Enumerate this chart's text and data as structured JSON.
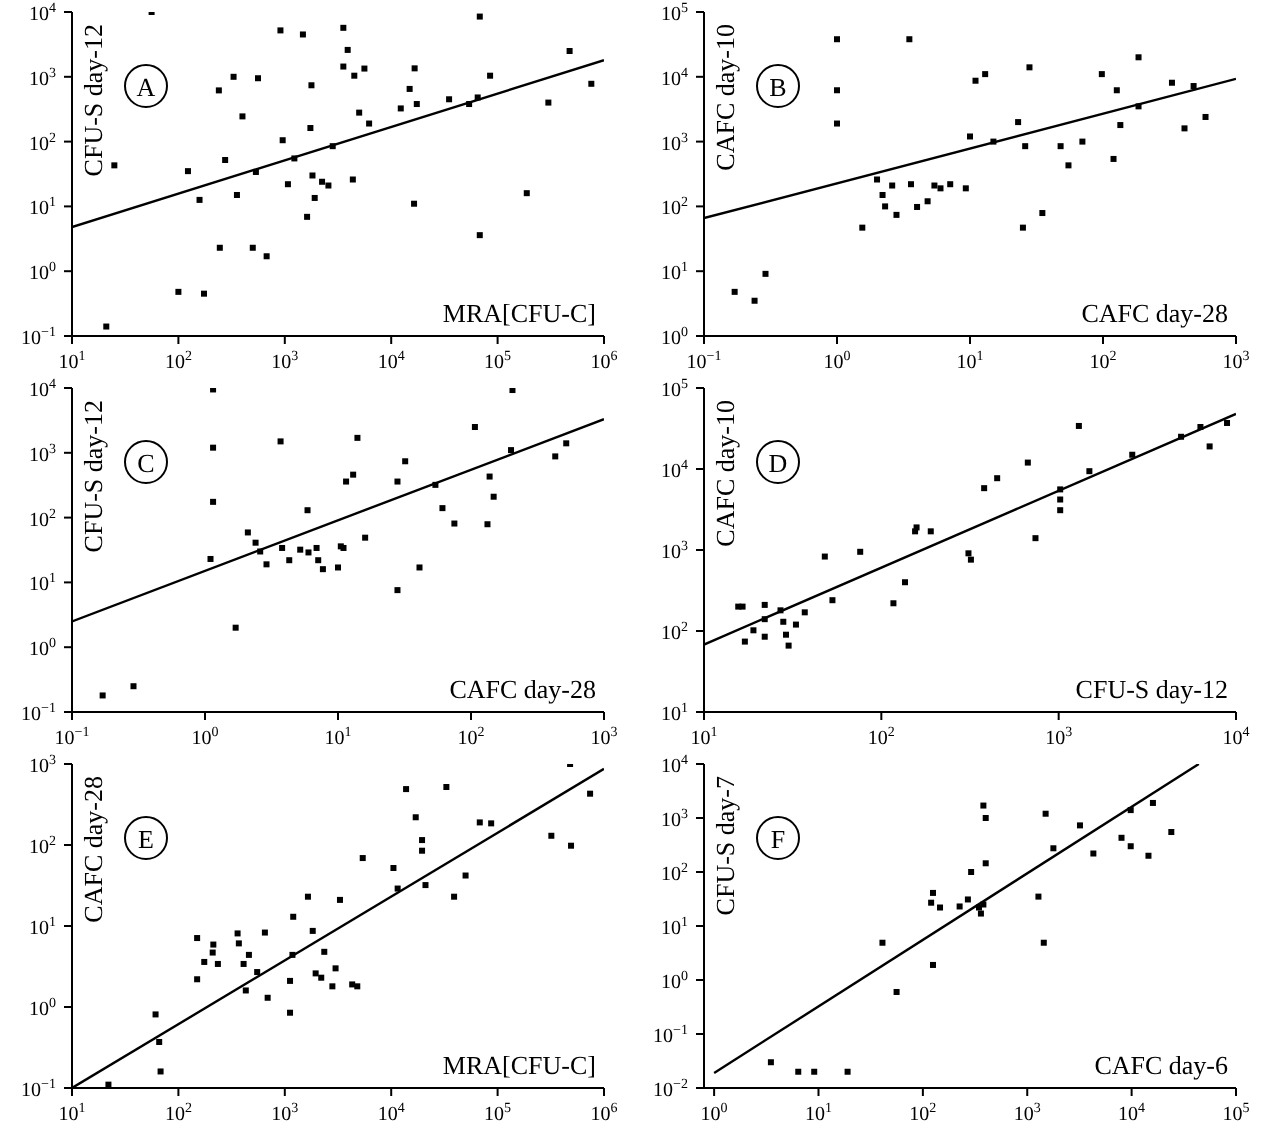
{
  "chart_data": [
    {
      "type": "scatter",
      "xlabel": "MRA[CFU-C]",
      "ylabel": "CFU-S day-12",
      "annotations": [
        "A"
      ],
      "log": "xy",
      "grid": false,
      "legend": false,
      "marker": "square",
      "xlim": [
        10,
        1000000
      ],
      "ylim": [
        0.1,
        10000
      ],
      "xticks": [
        {
          "value": 10,
          "label": "10$^{1}$"
        },
        {
          "value": 100,
          "label": "10$^{2}$"
        },
        {
          "value": 1000,
          "label": "10$^{3}$"
        },
        {
          "value": 10000,
          "label": "10$^{4}$"
        },
        {
          "value": 100000,
          "label": "10$^{5}$"
        },
        {
          "value": 1000000,
          "label": "10$^{6}$"
        }
      ],
      "yticks": [
        {
          "value": 0.1,
          "label": "10$^{−1}$"
        },
        {
          "value": 1,
          "label": "10$^{0}$"
        },
        {
          "value": 10,
          "label": "10$^{1}$"
        },
        {
          "value": 100,
          "label": "10$^{2}$"
        },
        {
          "value": 1000,
          "label": "10$^{3}$"
        },
        {
          "value": 10000,
          "label": "10$^{4}$"
        }
      ],
      "series": [
        {
          "color": "#000000",
          "x": [
            21,
            56,
            25,
            100,
            174,
            123,
            158,
            240,
            330,
            245,
            355,
            275,
            400,
            560,
            500,
            675,
            535,
            910,
            955,
            1070,
            1230,
            1480,
            1620,
            1740,
            1780,
            1820,
            1910,
            2240,
            2570,
            2820,
            3550,
            3550,
            3900,
            4360,
            4500,
            5000,
            5600,
            6200,
            16400,
            12300,
            14900,
            17400,
            16600,
            35000,
            54000,
            65000,
            68000,
            68000,
            85000,
            188000,
            300000,
            475000,
            760000
          ],
          "values": [
            0.14,
            10000,
            43,
            0.48,
            0.45,
            35,
            12.6,
            617,
            1000,
            2.3,
            15,
            52,
            245,
            950,
            2.3,
            1.7,
            34,
            5200,
            105,
            22,
            55,
            4500,
            6.9,
            162,
            740,
            30,
            13.5,
            24,
            21,
            85,
            5700,
            1440,
            2600,
            26,
            1040,
            280,
            1340,
            190,
            11,
            325,
            650,
            380,
            1350,
            450,
            380,
            480,
            3.6,
            8500,
            1040,
            16,
            400,
            2500,
            780
          ]
        },
        {
          "type": "line",
          "color": "#000000",
          "marker": "none",
          "x": [
            10,
            1000000
          ],
          "values": [
            4.8,
            1800
          ]
        }
      ]
    },
    {
      "type": "scatter",
      "xlabel": "CAFC day-28",
      "ylabel": "CAFC day-10",
      "annotations": [
        "B"
      ],
      "log": "xy",
      "grid": false,
      "legend": false,
      "marker": "square",
      "xlim": [
        0.1,
        1000
      ],
      "ylim": [
        1,
        100000
      ],
      "xticks": [
        {
          "value": 0.1,
          "label": "10$^{−1}$"
        },
        {
          "value": 1,
          "label": "10$^{0}$"
        },
        {
          "value": 10,
          "label": "10$^{1}$"
        },
        {
          "value": 100,
          "label": "10$^{2}$"
        },
        {
          "value": 1000,
          "label": "10$^{3}$"
        }
      ],
      "yticks": [
        {
          "value": 1,
          "label": "10$^{0}$"
        },
        {
          "value": 10,
          "label": "10$^{1}$"
        },
        {
          "value": 100,
          "label": "10$^{2}$"
        },
        {
          "value": 1000,
          "label": "10$^{3}$"
        },
        {
          "value": 10000,
          "label": "10$^{4}$"
        },
        {
          "value": 100000,
          "label": "10$^{5}$"
        }
      ],
      "series": [
        {
          "color": "#000000",
          "x": [
            0.17,
            0.24,
            0.29,
            1.0,
            1.0,
            1.0,
            1.55,
            3.5,
            2.0,
            2.2,
            2.3,
            2.6,
            2.8,
            3.6,
            4.0,
            4.8,
            5.4,
            6.0,
            7.1,
            9.3,
            10,
            11,
            13,
            15,
            23,
            25,
            26,
            28,
            35,
            48,
            55,
            70,
            98,
            120,
            127,
            135,
            185,
            185,
            330,
            410,
            480,
            590
          ],
          "values": [
            4.8,
            3.5,
            9.1,
            38000,
            6200,
            1900,
            47,
            38000,
            260,
            150,
            100,
            210,
            74,
            220,
            98,
            120,
            210,
            190,
            220,
            190,
            1200,
            8700,
            11000,
            1000,
            2000,
            47,
            850,
            14000,
            79,
            850,
            430,
            1000,
            11000,
            540,
            6200,
            1800,
            20000,
            3500,
            8100,
            1600,
            7200,
            2400
          ]
        },
        {
          "type": "line",
          "color": "#000000",
          "marker": "none",
          "x": [
            0.1,
            1000
          ],
          "values": [
            66,
            9300
          ]
        }
      ]
    },
    {
      "type": "scatter",
      "xlabel": "CAFC day-28",
      "ylabel": "CFU-S day-12",
      "annotations": [
        "C"
      ],
      "log": "xy",
      "grid": false,
      "legend": false,
      "marker": "square",
      "xlim": [
        0.1,
        1000
      ],
      "ylim": [
        0.1,
        10000
      ],
      "xticks": [
        {
          "value": 0.1,
          "label": "10$^{−1}$"
        },
        {
          "value": 1,
          "label": "10$^{0}$"
        },
        {
          "value": 10,
          "label": "10$^{1}$"
        },
        {
          "value": 100,
          "label": "10$^{2}$"
        },
        {
          "value": 1000,
          "label": "10$^{3}$"
        }
      ],
      "yticks": [
        {
          "value": 0.1,
          "label": "10$^{−1}$"
        },
        {
          "value": 1,
          "label": "10$^{0}$"
        },
        {
          "value": 10,
          "label": "10$^{1}$"
        },
        {
          "value": 100,
          "label": "10$^{2}$"
        },
        {
          "value": 1000,
          "label": "10$^{3}$"
        },
        {
          "value": 10000,
          "label": "10$^{4}$"
        }
      ],
      "series": [
        {
          "color": "#000000",
          "x": [
            0.17,
            0.29,
            1.15,
            1.15,
            1.15,
            1.1,
            1.7,
            2.1,
            2.4,
            2.6,
            2.9,
            3.7,
            3.8,
            4.3,
            5.2,
            5.9,
            6.0,
            6.9,
            7.1,
            7.7,
            10,
            10.5,
            11,
            11.5,
            13,
            14,
            16,
            28,
            28,
            32,
            41,
            54,
            61,
            75,
            107,
            133,
            138,
            148,
            200,
            205,
            430,
            520
          ],
          "values": [
            0.18,
            0.25,
            9500,
            1200,
            175,
            23,
            2.0,
            59,
            41,
            30,
            19,
            1500,
            34,
            22,
            32,
            130,
            29,
            34,
            22,
            16,
            17,
            36,
            34,
            360,
            460,
            1700,
            49,
            7.6,
            360,
            740,
            17,
            320,
            140,
            81,
            2500,
            79,
            430,
            210,
            1100,
            9300,
            880,
            1400
          ]
        },
        {
          "type": "line",
          "color": "#000000",
          "marker": "none",
          "x": [
            0.1,
            1000
          ],
          "values": [
            2.5,
            3300
          ]
        }
      ]
    },
    {
      "type": "scatter",
      "xlabel": "CFU-S day-12",
      "ylabel": "CAFC day-10",
      "annotations": [
        "D"
      ],
      "log": "xy",
      "grid": false,
      "legend": false,
      "marker": "square",
      "xlim": [
        10,
        10000
      ],
      "ylim": [
        10,
        100000
      ],
      "xticks": [
        {
          "value": 10,
          "label": "10$^{1}$"
        },
        {
          "value": 100,
          "label": "10$^{2}$"
        },
        {
          "value": 1000,
          "label": "10$^{3}$"
        },
        {
          "value": 10000,
          "label": "10$^{4}$"
        }
      ],
      "yticks": [
        {
          "value": 10,
          "label": "10$^{1}$"
        },
        {
          "value": 100,
          "label": "10$^{2}$"
        },
        {
          "value": 1000,
          "label": "10$^{3}$"
        },
        {
          "value": 10000,
          "label": "10$^{4}$"
        },
        {
          "value": 100000,
          "label": "10$^{5}$"
        }
      ],
      "series": [
        {
          "color": "#000000",
          "x": [
            15.6,
            16.5,
            17,
            19,
            22,
            22,
            22,
            27,
            28,
            29,
            30,
            33,
            37,
            53,
            48,
            76,
            117,
            136,
            155,
            158,
            190,
            310,
            320,
            380,
            450,
            670,
            740,
            1020,
            1020,
            1020,
            1300,
            1490,
            2600,
            4900,
            6300,
            7100,
            8900
          ],
          "values": [
            200,
            200,
            74,
            102,
            210,
            140,
            85,
            180,
            130,
            90,
            66,
            120,
            170,
            240,
            830,
            950,
            220,
            400,
            1700,
            1900,
            1700,
            910,
            760,
            5800,
            7700,
            12000,
            1400,
            5600,
            4200,
            3100,
            34000,
            9400,
            15000,
            25000,
            33000,
            19000,
            37000
          ]
        },
        {
          "type": "line",
          "color": "#000000",
          "marker": "none",
          "x": [
            10,
            10000
          ],
          "values": [
            68,
            48000
          ]
        }
      ]
    },
    {
      "type": "scatter",
      "xlabel": "MRA[CFU-C]",
      "ylabel": "CAFC day-28",
      "annotations": [
        "E"
      ],
      "log": "xy",
      "grid": false,
      "legend": false,
      "marker": "square",
      "xlim": [
        10,
        1000000
      ],
      "ylim": [
        0.1,
        1000
      ],
      "xticks": [
        {
          "value": 10,
          "label": "10$^{1}$"
        },
        {
          "value": 100,
          "label": "10$^{2}$"
        },
        {
          "value": 1000,
          "label": "10$^{3}$"
        },
        {
          "value": 10000,
          "label": "10$^{4}$"
        },
        {
          "value": 100000,
          "label": "10$^{5}$"
        },
        {
          "value": 1000000,
          "label": "10$^{6}$"
        }
      ],
      "yticks": [
        {
          "value": 0.1,
          "label": "10$^{−1}$"
        },
        {
          "value": 1,
          "label": "10$^{0}$"
        },
        {
          "value": 10,
          "label": "10$^{1}$"
        },
        {
          "value": 100,
          "label": "10$^{2}$"
        },
        {
          "value": 1000,
          "label": "10$^{3}$"
        }
      ],
      "series": [
        {
          "color": "#000000",
          "x": [
            22,
            61,
            66,
            68,
            150,
            150,
            175,
            210,
            213,
            235,
            360,
            370,
            410,
            430,
            460,
            650,
            690,
            550,
            1120,
            1120,
            1180,
            1200,
            1650,
            1830,
            1950,
            2200,
            2350,
            2800,
            3000,
            3300,
            4300,
            4800,
            5400,
            10500,
            11500,
            13800,
            17000,
            19500,
            19500,
            21000,
            33000,
            39000,
            50000,
            68000,
            87000,
            320000,
            490000,
            480000,
            740000
          ],
          "values": [
            0.11,
            0.81,
            0.37,
            0.16,
            7.1,
            2.2,
            3.6,
            4.7,
            5.9,
            3.4,
            8.1,
            6.1,
            3.4,
            1.6,
            4.4,
            8.3,
            1.3,
            2.7,
            0.85,
            2.1,
            4.4,
            13,
            23,
            8.7,
            2.6,
            2.3,
            4.8,
            1.8,
            3.0,
            21,
            1.9,
            1.8,
            69,
            52,
            29,
            490,
            220,
            115,
            85,
            32,
            520,
            23,
            42,
            190,
            185,
            130,
            98,
            1000,
            430
          ]
        },
        {
          "type": "line",
          "color": "#000000",
          "marker": "none",
          "x": [
            10,
            1000000
          ],
          "values": [
            0.1,
            870
          ]
        }
      ]
    },
    {
      "type": "scatter",
      "xlabel": "CAFC day-6",
      "ylabel": "CFU-S day-7",
      "annotations": [
        "F"
      ],
      "log": "xy",
      "grid": false,
      "legend": false,
      "marker": "square",
      "xlim": [
        0.8,
        100000
      ],
      "ylim": [
        0.01,
        10000
      ],
      "xticks": [
        {
          "value": 1,
          "label": "10$^{0}$"
        },
        {
          "value": 10,
          "label": "10$^{1}$"
        },
        {
          "value": 100,
          "label": "10$^{2}$"
        },
        {
          "value": 1000,
          "label": "10$^{3}$"
        },
        {
          "value": 10000,
          "label": "10$^{4}$"
        },
        {
          "value": 100000,
          "label": "10$^{5}$"
        }
      ],
      "yticks": [
        {
          "value": 0.01,
          "label": "10$^{−2}$"
        },
        {
          "value": 0.1,
          "label": "10$^{−1}$"
        },
        {
          "value": 1,
          "label": "10$^{0}$"
        },
        {
          "value": 10,
          "label": "10$^{1}$"
        },
        {
          "value": 100,
          "label": "10$^{2}$"
        },
        {
          "value": 1000,
          "label": "10$^{3}$"
        },
        {
          "value": 10000,
          "label": "10$^{4}$"
        }
      ],
      "series": [
        {
          "color": "#000000",
          "x": [
            3.5,
            6.4,
            9.1,
            19,
            41,
            56,
            120,
            125,
            125,
            146,
            225,
            270,
            290,
            345,
            360,
            380,
            380,
            400,
            400,
            1280,
            1440,
            1500,
            1780,
            3200,
            4300,
            8000,
            9800,
            9800,
            14500,
            16000,
            24000
          ],
          "values": [
            0.03,
            0.02,
            0.02,
            0.02,
            4.9,
            0.6,
            27,
            41,
            1.9,
            22,
            23,
            31,
            100,
            22,
            17,
            25,
            1700,
            1000,
            145,
            35,
            4.9,
            1200,
            275,
            730,
            220,
            430,
            300,
            1400,
            200,
            1900,
            550
          ]
        },
        {
          "type": "line",
          "color": "#000000",
          "marker": "none",
          "x": [
            1,
            44000
          ],
          "values": [
            0.019,
            10000
          ]
        }
      ]
    }
  ]
}
